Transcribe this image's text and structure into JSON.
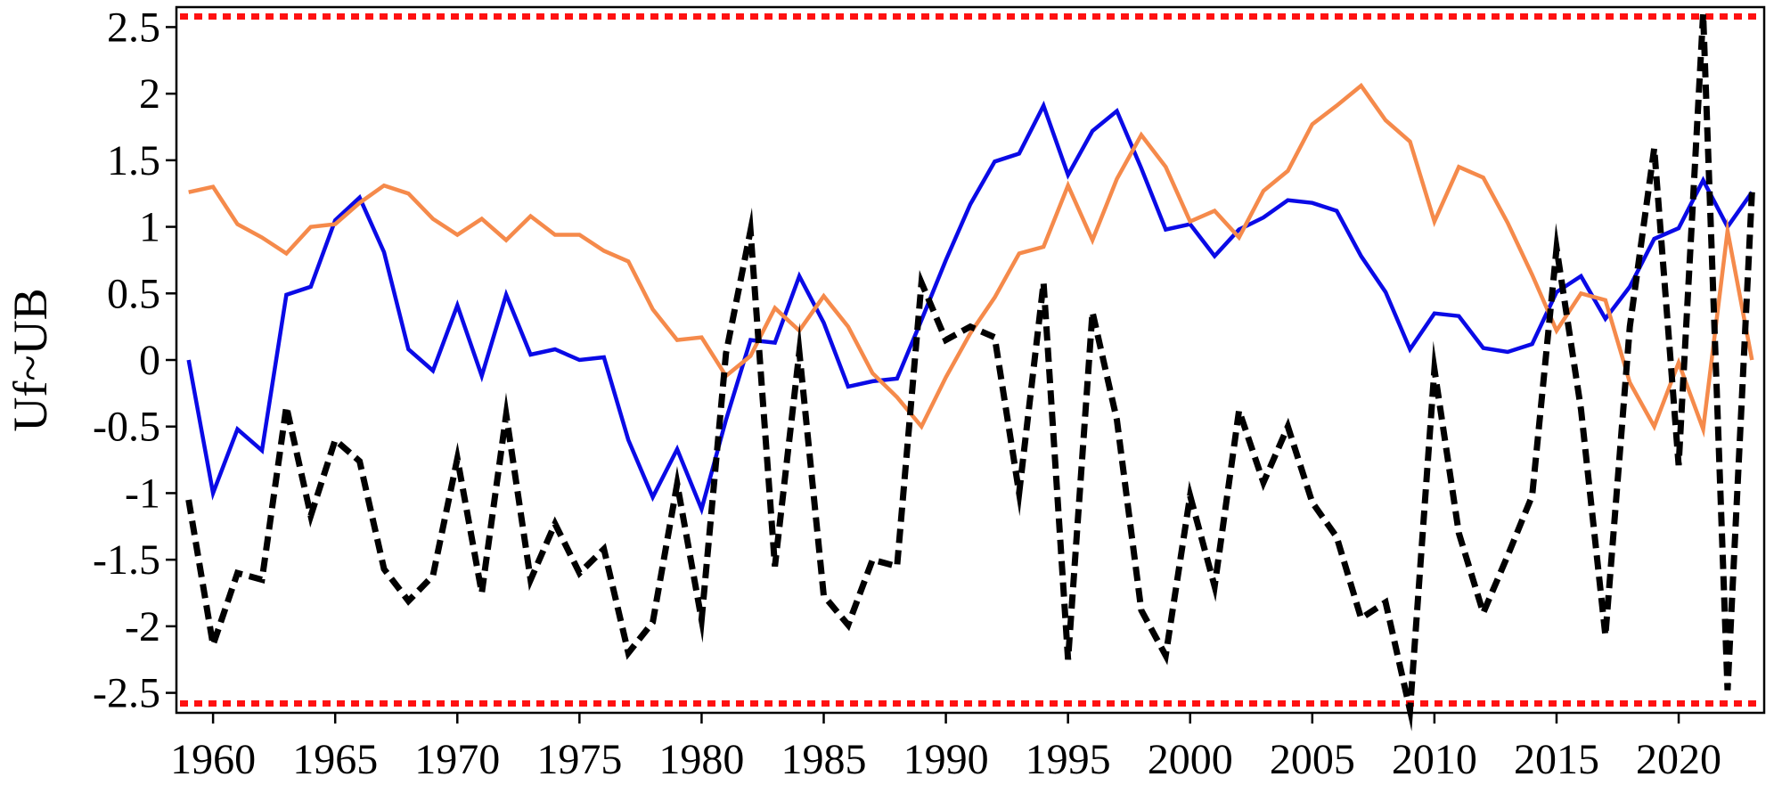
{
  "chart_data": {
    "type": "line",
    "title": "",
    "xlabel": "",
    "ylabel": "Uf~UB",
    "xlim": [
      1958.5,
      2023.5
    ],
    "ylim": [
      -2.65,
      2.65
    ],
    "grid": false,
    "x_ticks": [
      1960,
      1965,
      1970,
      1975,
      1980,
      1985,
      1990,
      1995,
      2000,
      2005,
      2010,
      2015,
      2020
    ],
    "x_tick_labels": [
      "1960",
      "1965",
      "1970",
      "1975",
      "1980",
      "1985",
      "1990",
      "1995",
      "2000",
      "2005",
      "2010",
      "2015",
      "2020"
    ],
    "y_ticks": [
      2.5,
      2,
      1.5,
      1,
      0.5,
      0,
      -0.5,
      -1,
      -1.5,
      -2,
      -2.5
    ],
    "y_tick_labels": [
      "2.5",
      "2",
      "1.5",
      "1",
      "0.5",
      "0",
      "-0.5",
      "-1",
      "-1.5",
      "-2",
      "-2.5"
    ],
    "x": [
      1959,
      1960,
      1961,
      1962,
      1963,
      1964,
      1965,
      1966,
      1967,
      1968,
      1969,
      1970,
      1971,
      1972,
      1973,
      1974,
      1975,
      1976,
      1977,
      1978,
      1979,
      1980,
      1981,
      1982,
      1983,
      1984,
      1985,
      1986,
      1987,
      1988,
      1989,
      1990,
      1991,
      1992,
      1993,
      1994,
      1995,
      1996,
      1997,
      1998,
      1999,
      2000,
      2001,
      2002,
      2003,
      2004,
      2005,
      2006,
      2007,
      2008,
      2009,
      2010,
      2011,
      2012,
      2013,
      2014,
      2015,
      2016,
      2017,
      2018,
      2019,
      2020,
      2021,
      2022,
      2023
    ],
    "series": [
      {
        "color": "#0a0ae6",
        "style": "solid",
        "values": [
          0.0,
          -1.0,
          -0.52,
          -0.68,
          0.49,
          0.55,
          1.05,
          1.22,
          0.81,
          0.08,
          -0.08,
          0.41,
          -0.12,
          0.49,
          0.04,
          0.08,
          0.0,
          0.02,
          -0.6,
          -1.03,
          -0.67,
          -1.12,
          -0.45,
          0.15,
          0.13,
          0.63,
          0.28,
          -0.2,
          -0.16,
          -0.14,
          0.3,
          0.75,
          1.17,
          1.49,
          1.55,
          1.91,
          1.39,
          1.72,
          1.87,
          1.44,
          0.98,
          1.02,
          0.78,
          0.98,
          1.07,
          1.2,
          1.18,
          1.12,
          0.78,
          0.51,
          0.08,
          0.35,
          0.33,
          0.09,
          0.06,
          0.12,
          0.51,
          0.63,
          0.31,
          0.55,
          0.91,
          0.99,
          1.35,
          1.0,
          1.26
        ]
      },
      {
        "color": "#f58a4b",
        "style": "solid",
        "values": [
          1.26,
          1.3,
          1.02,
          0.92,
          0.8,
          1.0,
          1.02,
          1.18,
          1.31,
          1.25,
          1.06,
          0.94,
          1.06,
          0.9,
          1.08,
          0.94,
          0.94,
          0.82,
          0.74,
          0.38,
          0.15,
          0.17,
          -0.12,
          0.03,
          0.39,
          0.22,
          0.48,
          0.25,
          -0.1,
          -0.28,
          -0.5,
          -0.13,
          0.2,
          0.47,
          0.8,
          0.85,
          1.31,
          0.9,
          1.36,
          1.69,
          1.45,
          1.04,
          1.12,
          0.92,
          1.27,
          1.42,
          1.77,
          1.91,
          2.06,
          1.8,
          1.64,
          1.04,
          1.45,
          1.37,
          1.03,
          0.64,
          0.22,
          0.5,
          0.45,
          -0.17,
          -0.5,
          -0.02,
          -0.52,
          0.97,
          0.0
        ]
      },
      {
        "color": "#000000",
        "style": "dashed",
        "values": [
          -1.05,
          -2.14,
          -1.6,
          -1.65,
          -0.35,
          -1.17,
          -0.6,
          -0.76,
          -1.57,
          -1.81,
          -1.62,
          -0.74,
          -1.75,
          -0.41,
          -1.65,
          -1.23,
          -1.6,
          -1.42,
          -2.2,
          -1.97,
          -0.93,
          -1.95,
          0.05,
          0.97,
          -1.55,
          0.06,
          -1.77,
          -1.99,
          -1.5,
          -1.55,
          0.58,
          0.15,
          0.25,
          0.17,
          -1.0,
          0.58,
          -2.25,
          0.36,
          -0.45,
          -1.88,
          -2.22,
          -1.02,
          -1.7,
          -0.38,
          -0.92,
          -0.5,
          -1.07,
          -1.33,
          -1.94,
          -1.82,
          -2.63,
          -0.07,
          -1.3,
          -1.9,
          -1.47,
          -1.02,
          0.84,
          -0.37,
          -2.07,
          0.25,
          1.59,
          -0.79,
          2.6,
          -2.48,
          1.26
        ]
      }
    ],
    "reference_lines": [
      {
        "y": 2.58,
        "color": "#ff1111",
        "style": "dotted"
      },
      {
        "y": -2.58,
        "color": "#ff1111",
        "style": "dotted"
      }
    ]
  }
}
